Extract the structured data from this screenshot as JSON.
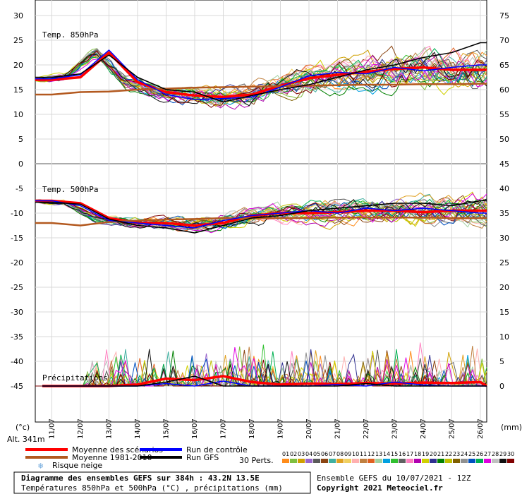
{
  "chart_data": {
    "type": "line",
    "x": [
      "11/07",
      "12/07",
      "13/07",
      "14/07",
      "15/07",
      "16/07",
      "17/07",
      "18/07",
      "19/07",
      "20/07",
      "21/07",
      "22/07",
      "23/07",
      "24/07",
      "25/07",
      "26/07"
    ],
    "left_axis": {
      "ticks": [
        30,
        25,
        20,
        15,
        10,
        5,
        0,
        -5,
        -10,
        -15,
        -20,
        -25,
        -30,
        -35,
        -40,
        -45
      ],
      "unit": "(°c)"
    },
    "right_axis": {
      "ticks": [
        75,
        70,
        65,
        60,
        55,
        50,
        45,
        40,
        35,
        30,
        25,
        20,
        15,
        10,
        5,
        0
      ],
      "unit": "(mm)"
    },
    "panels": [
      {
        "label": "Temp. 850hPa",
        "ylim": [
          0,
          30
        ],
        "series": [
          {
            "name": "Moyenne des scénarios",
            "color": "#ff0000",
            "values": [
              17.0,
              17.5,
              22.5,
              16.5,
              14.5,
              13.8,
              13.5,
              14.0,
              15.8,
              17.3,
              18.0,
              18.6,
              19.2,
              19.5,
              19.0,
              19.0
            ]
          },
          {
            "name": "Moyenne 1981-2010",
            "color": "#b3591f",
            "values": [
              14.0,
              14.5,
              14.6,
              15.0,
              15.2,
              15.4,
              15.5,
              15.6,
              15.7,
              15.8,
              15.9,
              16.0,
              16.0,
              16.1,
              16.1,
              16.2
            ]
          },
          {
            "name": "Run de contrôle",
            "color": "#0000ff",
            "values": [
              17.2,
              18.0,
              23.0,
              17.0,
              14.0,
              13.0,
              13.2,
              13.5,
              15.5,
              17.8,
              18.5,
              18.2,
              19.5,
              18.8,
              19.5,
              20.0
            ]
          },
          {
            "name": "Run GFS",
            "color": "#000000",
            "values": [
              17.5,
              18.2,
              22.0,
              17.5,
              15.0,
              14.5,
              12.5,
              13.8,
              15.0,
              16.0,
              17.5,
              19.0,
              20.0,
              21.5,
              22.5,
              24.5
            ]
          }
        ]
      },
      {
        "label": "Temp. 500hPa",
        "ylim": [
          -20,
          -5
        ],
        "series": [
          {
            "name": "Moyenne des scénarios",
            "color": "#ff0000",
            "values": [
              -7.5,
              -8.0,
              -11.0,
              -12.0,
              -12.0,
              -12.5,
              -12.0,
              -10.5,
              -10.0,
              -10.0,
              -9.8,
              -9.5,
              -9.5,
              -9.8,
              -9.5,
              -9.5
            ]
          },
          {
            "name": "Moyenne 1981-2010",
            "color": "#b3591f",
            "values": [
              -12.0,
              -12.5,
              -11.8,
              -11.5,
              -11.3,
              -11.2,
              -11.0,
              -11.0,
              -11.0,
              -11.0,
              -10.9,
              -10.9,
              -10.9,
              -10.9,
              -11.0,
              -11.0
            ]
          },
          {
            "name": "Run de contrôle",
            "color": "#0000ff",
            "values": [
              -7.5,
              -8.5,
              -11.5,
              -12.0,
              -12.5,
              -13.0,
              -11.5,
              -10.5,
              -10.0,
              -9.5,
              -10.0,
              -9.0,
              -9.5,
              -9.0,
              -9.5,
              -10.0
            ]
          },
          {
            "name": "Run GFS",
            "color": "#000000",
            "values": [
              -7.8,
              -8.2,
              -11.2,
              -12.5,
              -13.0,
              -14.0,
              -12.5,
              -11.0,
              -10.5,
              -9.5,
              -9.0,
              -8.5,
              -8.0,
              -8.0,
              -8.5,
              -7.5
            ]
          }
        ]
      },
      {
        "label": "Précipitations",
        "ylim": [
          0,
          25
        ],
        "series": [
          {
            "name": "Moyenne des scénarios",
            "color": "#ff0000",
            "values": [
              0,
              0,
              0,
              0.3,
              1.5,
              1.2,
              2.0,
              0.8,
              0.3,
              0.5,
              0.4,
              0.6,
              0.5,
              0.7,
              0.6,
              0.8
            ]
          },
          {
            "name": "Run de contrôle",
            "color": "#0000ff",
            "values": [
              0,
              0,
              0,
              0,
              0.5,
              0,
              1.0,
              0,
              0,
              0,
              0.3,
              0,
              0.8,
              0.2,
              0,
              0
            ]
          },
          {
            "name": "Run GFS",
            "color": "#000000",
            "values": [
              0,
              0,
              0,
              0,
              0.8,
              2.0,
              0,
              0,
              0,
              0,
              0,
              0.5,
              0,
              0,
              0,
              0
            ]
          }
        ]
      }
    ],
    "legend": {
      "position": "bottom-left",
      "items": [
        {
          "label": "Moyenne des scénarios",
          "color": "#ff0000"
        },
        {
          "label": "Moyenne 1981-2010",
          "color": "#b3591f"
        },
        {
          "label": "Risque neige",
          "color": "#6fa8dc"
        },
        {
          "label": "Run de contrôle",
          "color": "#0000ff"
        },
        {
          "label": "Run GFS",
          "color": "#000000"
        }
      ],
      "perts_label": "30 Perts.",
      "perts": [
        {
          "n": "01",
          "color": "#ff8c1a"
        },
        {
          "n": "02",
          "color": "#7fbf3f"
        },
        {
          "n": "03",
          "color": "#d0a000"
        },
        {
          "n": "04",
          "color": "#9966cc"
        },
        {
          "n": "05",
          "color": "#5a5a5a"
        },
        {
          "n": "06",
          "color": "#8b4513"
        },
        {
          "n": "07",
          "color": "#40b0a0"
        },
        {
          "n": "08",
          "color": "#e0a020"
        },
        {
          "n": "09",
          "color": "#f0d060"
        },
        {
          "n": "10",
          "color": "#ffb0b0"
        },
        {
          "n": "11",
          "color": "#c08040"
        },
        {
          "n": "12",
          "color": "#e06020"
        },
        {
          "n": "13",
          "color": "#a0d0a0"
        },
        {
          "n": "14",
          "color": "#00a0e0"
        },
        {
          "n": "15",
          "color": "#30c030"
        },
        {
          "n": "16",
          "color": "#606060"
        },
        {
          "n": "17",
          "color": "#ff80c0"
        },
        {
          "n": "18",
          "color": "#b000b0"
        },
        {
          "n": "19",
          "color": "#d0d000"
        },
        {
          "n": "20",
          "color": "#303090"
        },
        {
          "n": "21",
          "color": "#008000"
        },
        {
          "n": "22",
          "color": "#c0c000"
        },
        {
          "n": "23",
          "color": "#806000"
        },
        {
          "n": "24",
          "color": "#909090"
        },
        {
          "n": "25",
          "color": "#0050c0"
        },
        {
          "n": "26",
          "color": "#00b050"
        },
        {
          "n": "27",
          "color": "#e000e0"
        },
        {
          "n": "28",
          "color": "#c0c0c0"
        },
        {
          "n": "29",
          "color": "#101010"
        },
        {
          "n": "30",
          "color": "#800000"
        }
      ]
    }
  },
  "altitude": "Alt. 341m",
  "footer": {
    "title": "Diagramme des ensembles GEFS sur 384h : 43.2N 13.5E",
    "subtitle": "Températures 850hPa et 500hPa (°C) , précipitations (mm)",
    "run": "Ensemble GEFS du 10/07/2021 - 12Z",
    "copyright": "Copyright 2021 Meteociel.fr"
  }
}
